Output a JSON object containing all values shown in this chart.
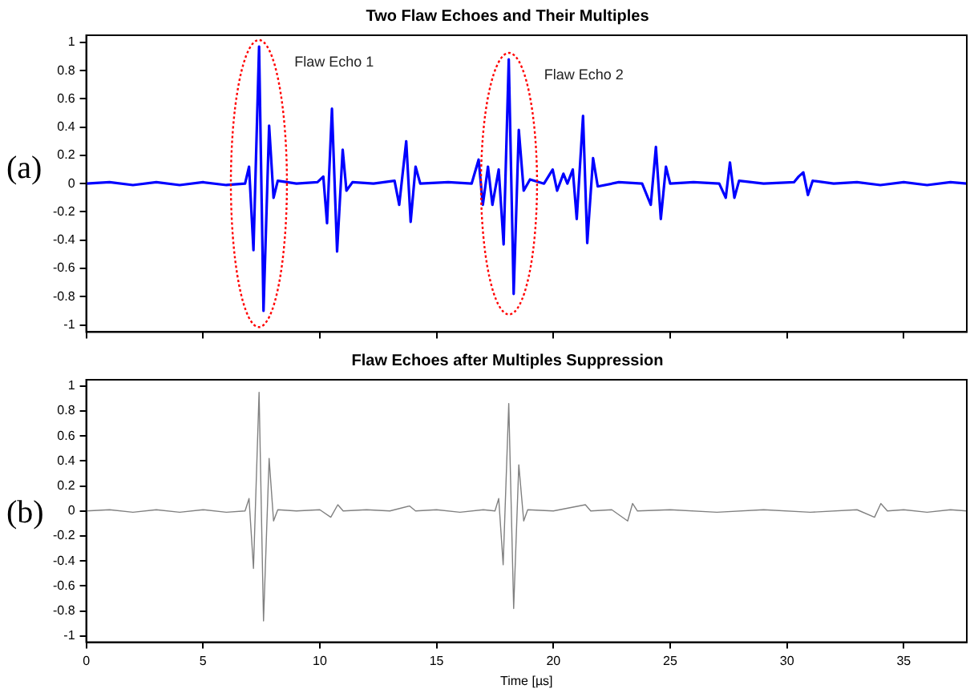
{
  "chart_data": [
    {
      "type": "line",
      "title": "Two Flaw Echoes and Their Multiples",
      "tick_labels": "y",
      "xlim": [
        0,
        37.7
      ],
      "xticks": [
        0,
        5,
        10,
        15,
        20,
        25,
        30,
        35
      ],
      "ylim": [
        -1.05,
        1.05
      ],
      "yticks": [
        -1,
        -0.8,
        -0.6,
        -0.4,
        -0.2,
        0,
        0.2,
        0.4,
        0.6,
        0.8,
        1
      ],
      "x": [
        0,
        1,
        2,
        3,
        4,
        5,
        6,
        6.8,
        6.97,
        7.16,
        7.4,
        7.59,
        7.83,
        8.02,
        8.2,
        9,
        9.9,
        10.15,
        10.31,
        10.52,
        10.74,
        10.98,
        11.14,
        11.4,
        12.3,
        13.2,
        13.4,
        13.7,
        13.89,
        14.1,
        14.3,
        15.5,
        16.5,
        16.8,
        16.98,
        17.2,
        17.39,
        17.66,
        17.87,
        18.09,
        18.3,
        18.52,
        18.73,
        19,
        19.6,
        19.97,
        20.16,
        20.43,
        20.6,
        20.83,
        21,
        21.27,
        21.45,
        21.7,
        21.9,
        22.8,
        23.8,
        24.17,
        24.39,
        24.6,
        24.82,
        25,
        26,
        27.1,
        27.38,
        27.56,
        27.75,
        27.95,
        29,
        30.3,
        30.5,
        30.7,
        30.9,
        31.1,
        32,
        33,
        34,
        35,
        36,
        37,
        37.7
      ],
      "series": [
        {
          "color": "#0000ff",
          "values": [
            0,
            0.01,
            -0.01,
            0.01,
            -0.01,
            0.01,
            -0.01,
            0,
            0.12,
            -0.47,
            0.97,
            -0.9,
            0.41,
            -0.1,
            0.02,
            0,
            0.01,
            0.05,
            -0.28,
            0.53,
            -0.48,
            0.24,
            -0.05,
            0.01,
            0,
            0.02,
            -0.15,
            0.3,
            -0.27,
            0.12,
            0,
            0.01,
            0,
            0.17,
            -0.15,
            0.12,
            -0.15,
            0.1,
            -0.43,
            0.88,
            -0.78,
            0.38,
            -0.05,
            0.03,
            0,
            0.1,
            -0.05,
            0.07,
            0,
            0.1,
            -0.25,
            0.48,
            -0.42,
            0.18,
            -0.02,
            0.01,
            0,
            -0.15,
            0.26,
            -0.25,
            0.12,
            0,
            0.01,
            0,
            -0.1,
            0.15,
            -0.1,
            0.02,
            0,
            0.01,
            0.05,
            0.08,
            -0.08,
            0.02,
            0,
            0.01,
            -0.01,
            0.01,
            -0.01,
            0.01,
            0
          ]
        }
      ],
      "annotations": [
        "(a)",
        "Flaw Echo 1",
        "Flaw Echo 2"
      ]
    },
    {
      "type": "line",
      "title": "Flaw Echoes after Multiples Suppression",
      "xlabel": "Time [µs]",
      "xlim": [
        0,
        37.7
      ],
      "xticks": [
        0,
        5,
        10,
        15,
        20,
        25,
        30,
        35
      ],
      "ylim": [
        -1.05,
        1.05
      ],
      "yticks": [
        -1,
        -0.8,
        -0.6,
        -0.4,
        -0.2,
        0,
        0.2,
        0.4,
        0.6,
        0.8,
        1
      ],
      "x": [
        0,
        1,
        2,
        3,
        4,
        5,
        6,
        6.8,
        6.97,
        7.16,
        7.4,
        7.59,
        7.83,
        8.02,
        8.2,
        9,
        10,
        10.47,
        10.77,
        11,
        12,
        13,
        13.84,
        14.1,
        15,
        16,
        17,
        17.5,
        17.66,
        17.85,
        18.09,
        18.3,
        18.52,
        18.73,
        18.9,
        20,
        21.37,
        21.6,
        22.5,
        23.18,
        23.39,
        23.6,
        25,
        27,
        29,
        31,
        33,
        33.75,
        34.02,
        34.3,
        35,
        36,
        37,
        37.7
      ],
      "series": [
        {
          "color": "#808080",
          "values": [
            0,
            0.01,
            -0.01,
            0.01,
            -0.01,
            0.01,
            -0.01,
            0,
            0.1,
            -0.46,
            0.95,
            -0.88,
            0.42,
            -0.08,
            0.01,
            0,
            0.01,
            -0.05,
            0.05,
            0,
            0.01,
            0,
            0.04,
            0,
            0.01,
            -0.01,
            0.01,
            0,
            0.1,
            -0.43,
            0.86,
            -0.78,
            0.37,
            -0.08,
            0.01,
            0,
            0.05,
            0,
            0.01,
            -0.08,
            0.06,
            0,
            0.01,
            -0.01,
            0.01,
            -0.01,
            0.01,
            -0.05,
            0.06,
            0,
            0.01,
            -0.01,
            0.01,
            0
          ]
        }
      ],
      "annotations": [
        "(b)"
      ]
    }
  ]
}
